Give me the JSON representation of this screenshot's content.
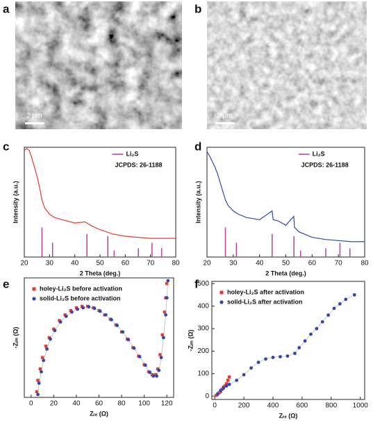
{
  "images": [
    {
      "panel_label": "a",
      "scale_bar": "2 μm"
    },
    {
      "panel_label": "b",
      "scale_bar": "2 μm"
    }
  ],
  "chart_data": [
    {
      "type": "line",
      "panel_label": "c",
      "x_label": "2 Theta (deg.)",
      "y_label": "Intensity (a.u.)",
      "xlim": [
        20,
        80
      ],
      "xticks": [
        20,
        30,
        40,
        50,
        60,
        70,
        80
      ],
      "ylim": [
        0,
        100
      ],
      "series": [
        {
          "color": "#e8392f",
          "x": [
            20,
            21,
            22,
            23,
            24,
            25,
            26,
            27,
            28,
            30,
            32,
            35,
            40,
            44,
            47,
            50,
            55,
            60,
            65,
            70,
            75,
            80
          ],
          "values": [
            97,
            99,
            97,
            90,
            82,
            74,
            64,
            52,
            45,
            39,
            36,
            34,
            31,
            32,
            28,
            25,
            21,
            19,
            18,
            17,
            17,
            17
          ]
        }
      ],
      "reference": {
        "name": "Li₂S",
        "color": "#c23b9c",
        "x": [
          27,
          31.2,
          44.8,
          53.1,
          55.6,
          65.2,
          70.6,
          74.4
        ],
        "values": [
          27,
          13,
          21,
          19,
          6,
          8,
          13,
          8
        ]
      },
      "legend_note": "JCPDS: 26-1188"
    },
    {
      "type": "line",
      "panel_label": "d",
      "x_label": "2 Theta (deg.)",
      "y_label": "Intensity (a.u.)",
      "xlim": [
        20,
        80
      ],
      "xticks": [
        20,
        30,
        40,
        50,
        60,
        70,
        80
      ],
      "ylim": [
        0,
        100
      ],
      "series": [
        {
          "color": "#2f47b0",
          "x": [
            20,
            21,
            22,
            23,
            24,
            25,
            26,
            27,
            28,
            30,
            32,
            35,
            40,
            44.8,
            45.2,
            47,
            50,
            53,
            53.3,
            55,
            60,
            65,
            70,
            75,
            80
          ],
          "values": [
            96,
            92,
            87,
            82,
            76,
            68,
            60,
            52,
            47,
            42,
            39,
            36,
            34,
            42,
            34,
            33,
            29,
            37,
            27,
            23,
            18,
            16,
            15,
            14,
            14
          ]
        }
      ],
      "reference": {
        "name": "Li₂S",
        "color": "#c23b9c",
        "x": [
          27,
          31.2,
          44.8,
          53.1,
          55.6,
          65.2,
          70.6,
          74.4
        ],
        "values": [
          27,
          13,
          21,
          19,
          6,
          8,
          13,
          8
        ]
      },
      "legend_note": "JCPDS: 26-1188"
    },
    {
      "type": "scatter",
      "panel_label": "e",
      "x_label": "Zᵣₑ (Ω)",
      "y_label": "-Zᵢₘ (Ω)",
      "xlim": [
        -6,
        126
      ],
      "xticks": [
        0,
        20,
        40,
        60,
        80,
        100,
        120
      ],
      "ylim": [
        0,
        42
      ],
      "series": [
        {
          "name": "holey-Li₂S before activation",
          "color": "#e8392f",
          "marker": "square",
          "x": [
            5,
            6,
            8,
            10,
            13,
            16,
            20,
            25,
            30,
            35,
            40,
            45,
            50,
            55,
            60,
            65,
            70,
            75,
            80,
            85,
            90,
            95,
            100,
            104,
            107,
            110,
            112,
            114,
            116,
            118,
            119,
            120
          ],
          "values": [
            2,
            6,
            10,
            14,
            18,
            21,
            24,
            27,
            29,
            30.5,
            31.5,
            32,
            32,
            31.5,
            30.5,
            29,
            27.5,
            25.5,
            23,
            20.5,
            17.5,
            14.5,
            11.5,
            9,
            8,
            8,
            10,
            15,
            22,
            30,
            35,
            40
          ]
        },
        {
          "name": "solid-Li₂S before activation",
          "color": "#2f47b0",
          "marker": "circle",
          "x": [
            6,
            7,
            9,
            11,
            14,
            17,
            21,
            26,
            31,
            36,
            41,
            46,
            51,
            56,
            61,
            66,
            71,
            76,
            81,
            86,
            91,
            96,
            101,
            105,
            108,
            111,
            113,
            115,
            117,
            119,
            120,
            121
          ],
          "values": [
            1,
            5,
            9,
            13,
            17,
            20.5,
            23.5,
            26.5,
            28.5,
            30,
            31,
            31.5,
            31.8,
            31.3,
            30.3,
            29,
            27.3,
            25.3,
            23,
            20.3,
            17.3,
            14.3,
            11.3,
            8.8,
            7.5,
            7.5,
            9.5,
            14,
            21,
            29,
            35,
            41
          ]
        }
      ],
      "legend": "upper left"
    },
    {
      "type": "scatter",
      "panel_label": "f",
      "x_label": "Zᵣₑ (Ω)",
      "y_label": "-Zᵢₘ (Ω)",
      "xlim": [
        -20,
        1030
      ],
      "xticks": [
        0,
        200,
        400,
        600,
        800,
        1000
      ],
      "ylim": [
        -15,
        510
      ],
      "yticks": [
        0,
        100,
        200,
        300,
        400,
        500
      ],
      "series": [
        {
          "name": "holey-Li₂S after activation",
          "color": "#e8392f",
          "marker": "square",
          "x": [
            10,
            20,
            30,
            40,
            50,
            60,
            70,
            80,
            90,
            100
          ],
          "values": [
            3,
            8,
            15,
            20,
            30,
            40,
            45,
            55,
            70,
            85
          ]
        },
        {
          "name": "solid-Li₂S after activation",
          "color": "#2f47b0",
          "marker": "circle",
          "x": [
            20,
            40,
            60,
            80,
            100,
            150,
            200,
            250,
            300,
            350,
            400,
            450,
            500,
            550,
            580,
            620,
            660,
            700,
            740,
            780,
            820,
            860,
            900,
            960
          ],
          "values": [
            10,
            25,
            35,
            45,
            52,
            70,
            95,
            125,
            150,
            165,
            172,
            175,
            178,
            190,
            215,
            245,
            275,
            300,
            330,
            360,
            390,
            410,
            430,
            450
          ]
        }
      ],
      "legend": "upper left"
    }
  ]
}
